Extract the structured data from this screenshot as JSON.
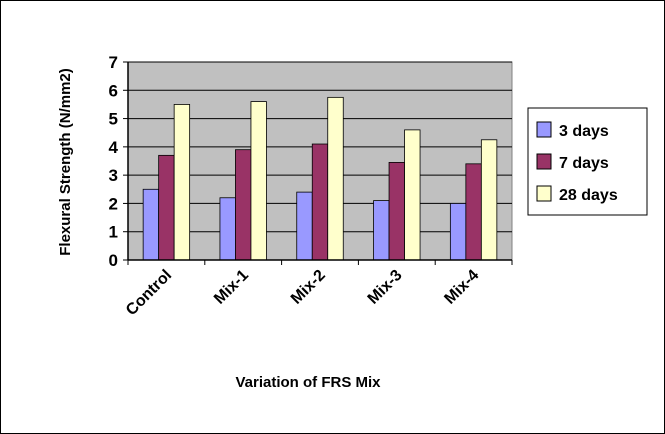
{
  "chart_data": {
    "type": "bar",
    "title": "",
    "xlabel": "Variation of FRS Mix",
    "ylabel": "Flexural Strength (N/mm2)",
    "categories": [
      "Control",
      "Mix-1",
      "Mix-2",
      "Mix-3",
      "Mix-4"
    ],
    "series": [
      {
        "name": "3 days",
        "values": [
          2.5,
          2.2,
          2.4,
          2.1,
          2.0
        ],
        "color": "#9999FF"
      },
      {
        "name": "7 days",
        "values": [
          3.7,
          3.9,
          4.1,
          3.45,
          3.4
        ],
        "color": "#993366"
      },
      {
        "name": "28 days",
        "values": [
          5.5,
          5.6,
          5.75,
          4.6,
          4.25
        ],
        "color": "#FFFFCC"
      }
    ],
    "ylim": [
      0,
      7
    ],
    "yticks": [
      0,
      1,
      2,
      3,
      4,
      5,
      6,
      7
    ],
    "grid": true,
    "plot_background": "#C0C0C0",
    "legend_position": "right"
  }
}
